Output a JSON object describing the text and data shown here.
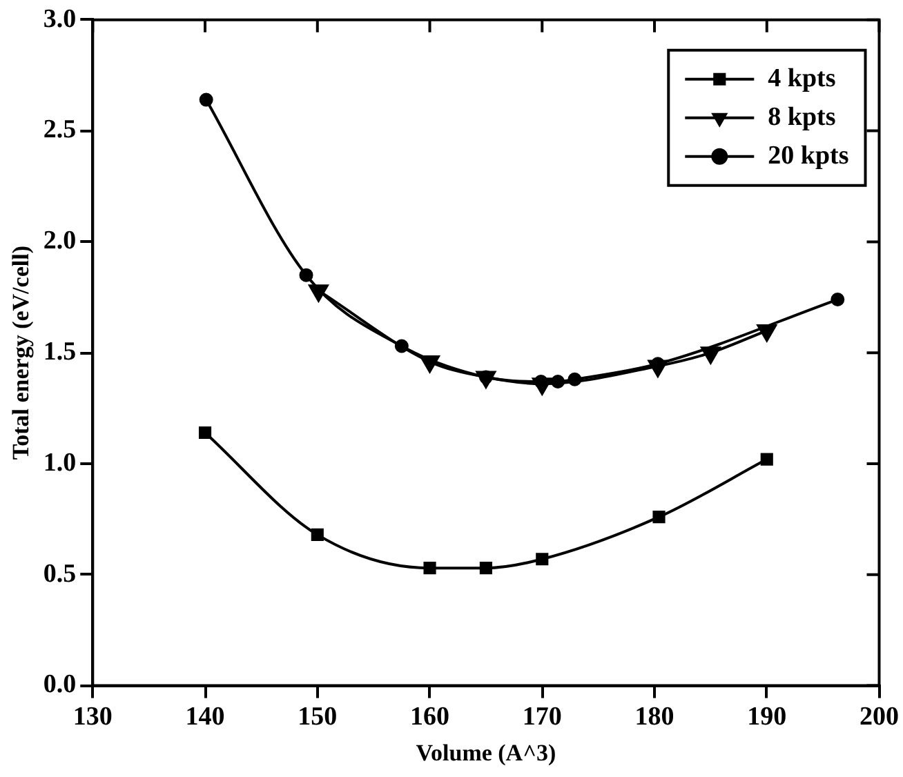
{
  "chart_data": {
    "type": "line",
    "xlabel": "Volume (A^3)",
    "ylabel": "Total energy (eV/cell)",
    "xlim": [
      130,
      200
    ],
    "xticks": [
      130,
      140,
      150,
      160,
      170,
      180,
      190,
      200
    ],
    "ylim": [
      0,
      3
    ],
    "yticks": [
      {
        "value": 0,
        "label": "0.0"
      },
      {
        "value": 0.5,
        "label": "0.5"
      },
      {
        "value": 1,
        "label": "1.0"
      },
      {
        "value": 1.5,
        "label": "1.5"
      },
      {
        "value": 2,
        "label": "2.0"
      },
      {
        "value": 2.5,
        "label": "2.5"
      },
      {
        "value": 3,
        "label": "3.0"
      }
    ],
    "grid": false,
    "legend": "top right",
    "line_style": "solid",
    "series": [
      {
        "name": "4 kpts",
        "color": "#000000",
        "marker": "square",
        "x": [
          140,
          150,
          160,
          165,
          170,
          180.4,
          190
        ],
        "values": [
          1.14,
          0.68,
          0.53,
          0.53,
          0.57,
          0.76,
          1.02
        ]
      },
      {
        "name": "8 kpts",
        "color": "#000000",
        "marker": "triangle",
        "x": [
          150.1,
          160,
          165,
          170,
          180.3,
          185,
          190
        ],
        "values": [
          1.78,
          1.46,
          1.39,
          1.36,
          1.44,
          1.5,
          1.6
        ]
      },
      {
        "name": "20 kpts",
        "color": "#000000",
        "marker": "circle",
        "x": [
          140.1,
          149,
          157.5,
          165,
          169.9,
          171.4,
          172.9,
          180.3,
          196.3
        ],
        "values": [
          2.64,
          1.85,
          1.53,
          1.39,
          1.37,
          1.37,
          1.38,
          1.45,
          1.74
        ]
      }
    ]
  }
}
